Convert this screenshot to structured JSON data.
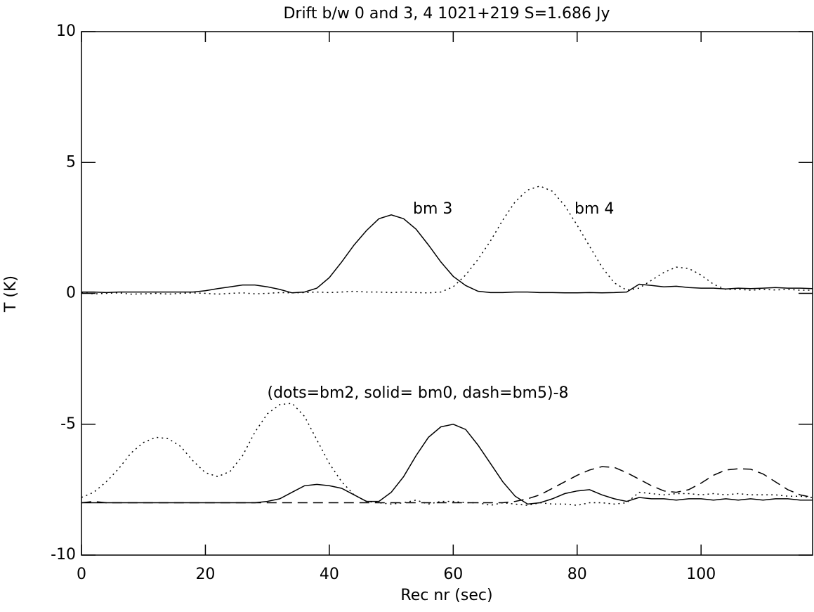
{
  "chart_data": {
    "type": "line",
    "title": "Drift b/w 0 and 3, 4 1021+219 S=1.686 Jy",
    "x_label": "Rec nr (sec)",
    "y_label": "T (K)",
    "annotations": [
      "bm 3",
      "bm 4",
      "(dots=bm2, solid= bm0, dash=bm5)-8"
    ],
    "xlim": [
      0,
      118
    ],
    "ylim": [
      -10,
      10
    ],
    "xticks": [
      0,
      20,
      40,
      60,
      80,
      100
    ],
    "yticks": [
      -10,
      -5,
      0,
      5,
      10
    ],
    "x": [
      0,
      2,
      4,
      6,
      8,
      10,
      12,
      14,
      16,
      18,
      20,
      22,
      24,
      26,
      28,
      30,
      32,
      34,
      36,
      38,
      40,
      42,
      44,
      46,
      48,
      50,
      52,
      54,
      56,
      58,
      60,
      62,
      64,
      66,
      68,
      70,
      72,
      74,
      76,
      78,
      80,
      82,
      84,
      86,
      88,
      90,
      92,
      94,
      96,
      98,
      100,
      102,
      104,
      106,
      108,
      110,
      112,
      114,
      116,
      118
    ],
    "series": [
      {
        "color": "#000000",
        "dash": "solid",
        "values": [
          0.05,
          0.05,
          0.03,
          0.05,
          0.05,
          0.05,
          0.05,
          0.05,
          0.05,
          0.05,
          0.1,
          0.18,
          0.25,
          0.32,
          0.32,
          0.25,
          0.15,
          0.02,
          0.05,
          0.2,
          0.6,
          1.2,
          1.85,
          2.4,
          2.85,
          3.0,
          2.85,
          2.45,
          1.85,
          1.2,
          0.65,
          0.3,
          0.08,
          0.03,
          0.03,
          0.05,
          0.05,
          0.03,
          0.03,
          0.02,
          0.02,
          0.03,
          0.02,
          0.03,
          0.05,
          0.35,
          0.3,
          0.25,
          0.27,
          0.22,
          0.2,
          0.2,
          0.17,
          0.2,
          0.18,
          0.2,
          0.22,
          0.2,
          0.2,
          0.18
        ]
      },
      {
        "color": "#000000",
        "dash": "dotted",
        "values": [
          0.03,
          -0.02,
          0.0,
          0.02,
          -0.03,
          -0.02,
          0.0,
          -0.03,
          0.0,
          0.02,
          0.0,
          -0.03,
          0.0,
          0.02,
          -0.02,
          0.0,
          0.03,
          0.02,
          0.03,
          0.05,
          0.03,
          0.05,
          0.08,
          0.05,
          0.05,
          0.03,
          0.05,
          0.03,
          0.02,
          0.05,
          0.25,
          0.7,
          1.3,
          2.0,
          2.8,
          3.5,
          3.95,
          4.1,
          3.9,
          3.35,
          2.6,
          1.8,
          1.0,
          0.4,
          0.12,
          0.2,
          0.5,
          0.8,
          1.0,
          0.95,
          0.7,
          0.35,
          0.15,
          0.15,
          0.12,
          0.15,
          0.13,
          0.15,
          0.12,
          0.12
        ]
      },
      {
        "color": "#000000",
        "dash": "dotted",
        "values": [
          -7.8,
          -7.6,
          -7.2,
          -6.7,
          -6.1,
          -5.7,
          -5.5,
          -5.55,
          -5.85,
          -6.4,
          -6.85,
          -7.0,
          -6.8,
          -6.2,
          -5.3,
          -4.6,
          -4.25,
          -4.2,
          -4.7,
          -5.6,
          -6.5,
          -7.2,
          -7.7,
          -7.95,
          -8.0,
          -8.05,
          -8.0,
          -7.9,
          -8.05,
          -7.95,
          -7.95,
          -8.0,
          -8.0,
          -8.1,
          -8.0,
          -8.05,
          -8.1,
          -8.0,
          -8.05,
          -8.05,
          -8.1,
          -8.0,
          -8.0,
          -8.05,
          -8.0,
          -7.6,
          -7.65,
          -7.7,
          -7.65,
          -7.65,
          -7.7,
          -7.65,
          -7.7,
          -7.65,
          -7.7,
          -7.7,
          -7.7,
          -7.75,
          -7.75,
          -7.8
        ]
      },
      {
        "color": "#000000",
        "dash": "solid",
        "values": [
          -8.0,
          -8.0,
          -8.0,
          -8.0,
          -8.0,
          -8.0,
          -8.0,
          -8.0,
          -8.0,
          -8.0,
          -8.0,
          -8.0,
          -8.0,
          -8.0,
          -8.0,
          -7.95,
          -7.85,
          -7.6,
          -7.35,
          -7.3,
          -7.35,
          -7.45,
          -7.7,
          -7.95,
          -7.95,
          -7.6,
          -7.0,
          -6.2,
          -5.5,
          -5.1,
          -5.0,
          -5.2,
          -5.8,
          -6.5,
          -7.2,
          -7.75,
          -8.05,
          -8.0,
          -7.85,
          -7.65,
          -7.55,
          -7.5,
          -7.7,
          -7.85,
          -7.95,
          -7.8,
          -7.85,
          -7.85,
          -7.9,
          -7.85,
          -7.85,
          -7.9,
          -7.85,
          -7.9,
          -7.85,
          -7.9,
          -7.85,
          -7.85,
          -7.9,
          -7.9
        ]
      },
      {
        "color": "#000000",
        "dash": "dashed",
        "values": [
          -8.0,
          -7.95,
          -8.0,
          -8.0,
          -8.0,
          -8.0,
          -8.0,
          -8.0,
          -8.0,
          -8.0,
          -8.0,
          -8.0,
          -8.0,
          -8.0,
          -8.0,
          -8.0,
          -8.0,
          -8.0,
          -8.0,
          -8.0,
          -8.0,
          -8.0,
          -8.0,
          -8.0,
          -8.0,
          -8.0,
          -8.0,
          -8.0,
          -8.0,
          -8.0,
          -8.0,
          -8.0,
          -8.0,
          -8.0,
          -8.0,
          -7.95,
          -7.85,
          -7.7,
          -7.45,
          -7.2,
          -6.95,
          -6.75,
          -6.62,
          -6.65,
          -6.85,
          -7.1,
          -7.35,
          -7.55,
          -7.6,
          -7.5,
          -7.25,
          -6.95,
          -6.75,
          -6.7,
          -6.72,
          -6.9,
          -7.2,
          -7.5,
          -7.7,
          -7.8
        ]
      }
    ]
  }
}
